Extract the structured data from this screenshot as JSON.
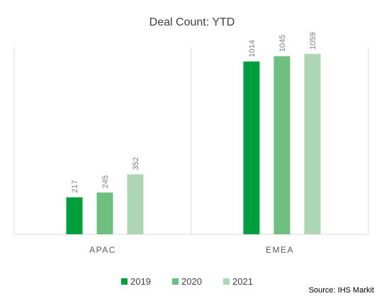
{
  "chart_data": {
    "type": "bar",
    "title": "Deal Count: YTD",
    "categories": [
      "APAC",
      "EMEA"
    ],
    "series": [
      {
        "name": "2019",
        "values": [
          217,
          1014
        ],
        "color": "#009e3d"
      },
      {
        "name": "2020",
        "values": [
          245,
          1045
        ],
        "color": "#6cbf7e"
      },
      {
        "name": "2021",
        "values": [
          352,
          1059
        ],
        "color": "#aed6b5"
      }
    ],
    "ylim": [
      0,
      1100
    ],
    "grid": false,
    "legend": "bottom",
    "data_labels": true,
    "source": "Source: IHS Markit"
  }
}
